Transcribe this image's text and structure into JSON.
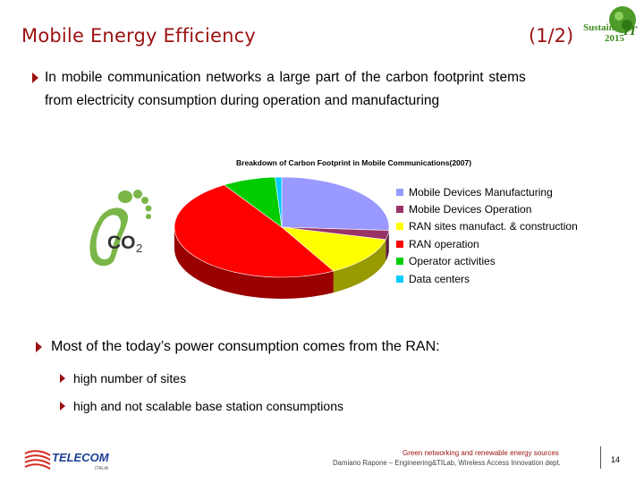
{
  "header": {
    "title": "Mobile Energy Efficiency",
    "part": "(1/2)",
    "logo_text_top": "Sustain",
    "logo_text_bottom": "2015",
    "logo_mark": "IT"
  },
  "bullets": {
    "b1_line1": "In mobile communication networks a large part of the carbon footprint stems",
    "b1_line2": "from electricity consumption during operation and manufacturing",
    "b2": "Most of the today’s  power consumption comes from the RAN:",
    "b2_sub1": "high number of sites",
    "b2_sub2": "high and not scalable base station consumptions"
  },
  "co2_label": "CO",
  "co2_sub": "2",
  "chart_data": {
    "type": "pie",
    "title": "Breakdown of Carbon Footprint in Mobile Communications",
    "year": "(2007)",
    "legend_position": "right",
    "slices": [
      {
        "name": "Mobile Devices Manufacturing",
        "value": 26,
        "color": "#9999ff"
      },
      {
        "name": "Mobile Devices Operation",
        "value": 3,
        "color": "#993366"
      },
      {
        "name": "RAN sites manufact. & construction",
        "value": 13,
        "color": "#ffff00"
      },
      {
        "name": "RAN operation",
        "value": 49,
        "color": "#ff0000"
      },
      {
        "name": "Operator activities",
        "value": 8,
        "color": "#00cc00"
      },
      {
        "name": "Data centers",
        "value": 1,
        "color": "#00ccff"
      }
    ]
  },
  "footer": {
    "topic": "Green networking and renewable energy sources",
    "author": "Damiano Rapone – Engineering&TILab, Wireless Access Innovation dept.",
    "page": "14",
    "company": "TELECOM",
    "company_sub": "ITALIA"
  },
  "colors": {
    "accent": "#9b1111",
    "footprint_green": "#7ab648",
    "logo_green": "#3e8e1e"
  },
  "icons": [
    "triangle-bullet-icon",
    "footprint-icon",
    "sustain-it-logo",
    "telecom-italia-logo"
  ]
}
